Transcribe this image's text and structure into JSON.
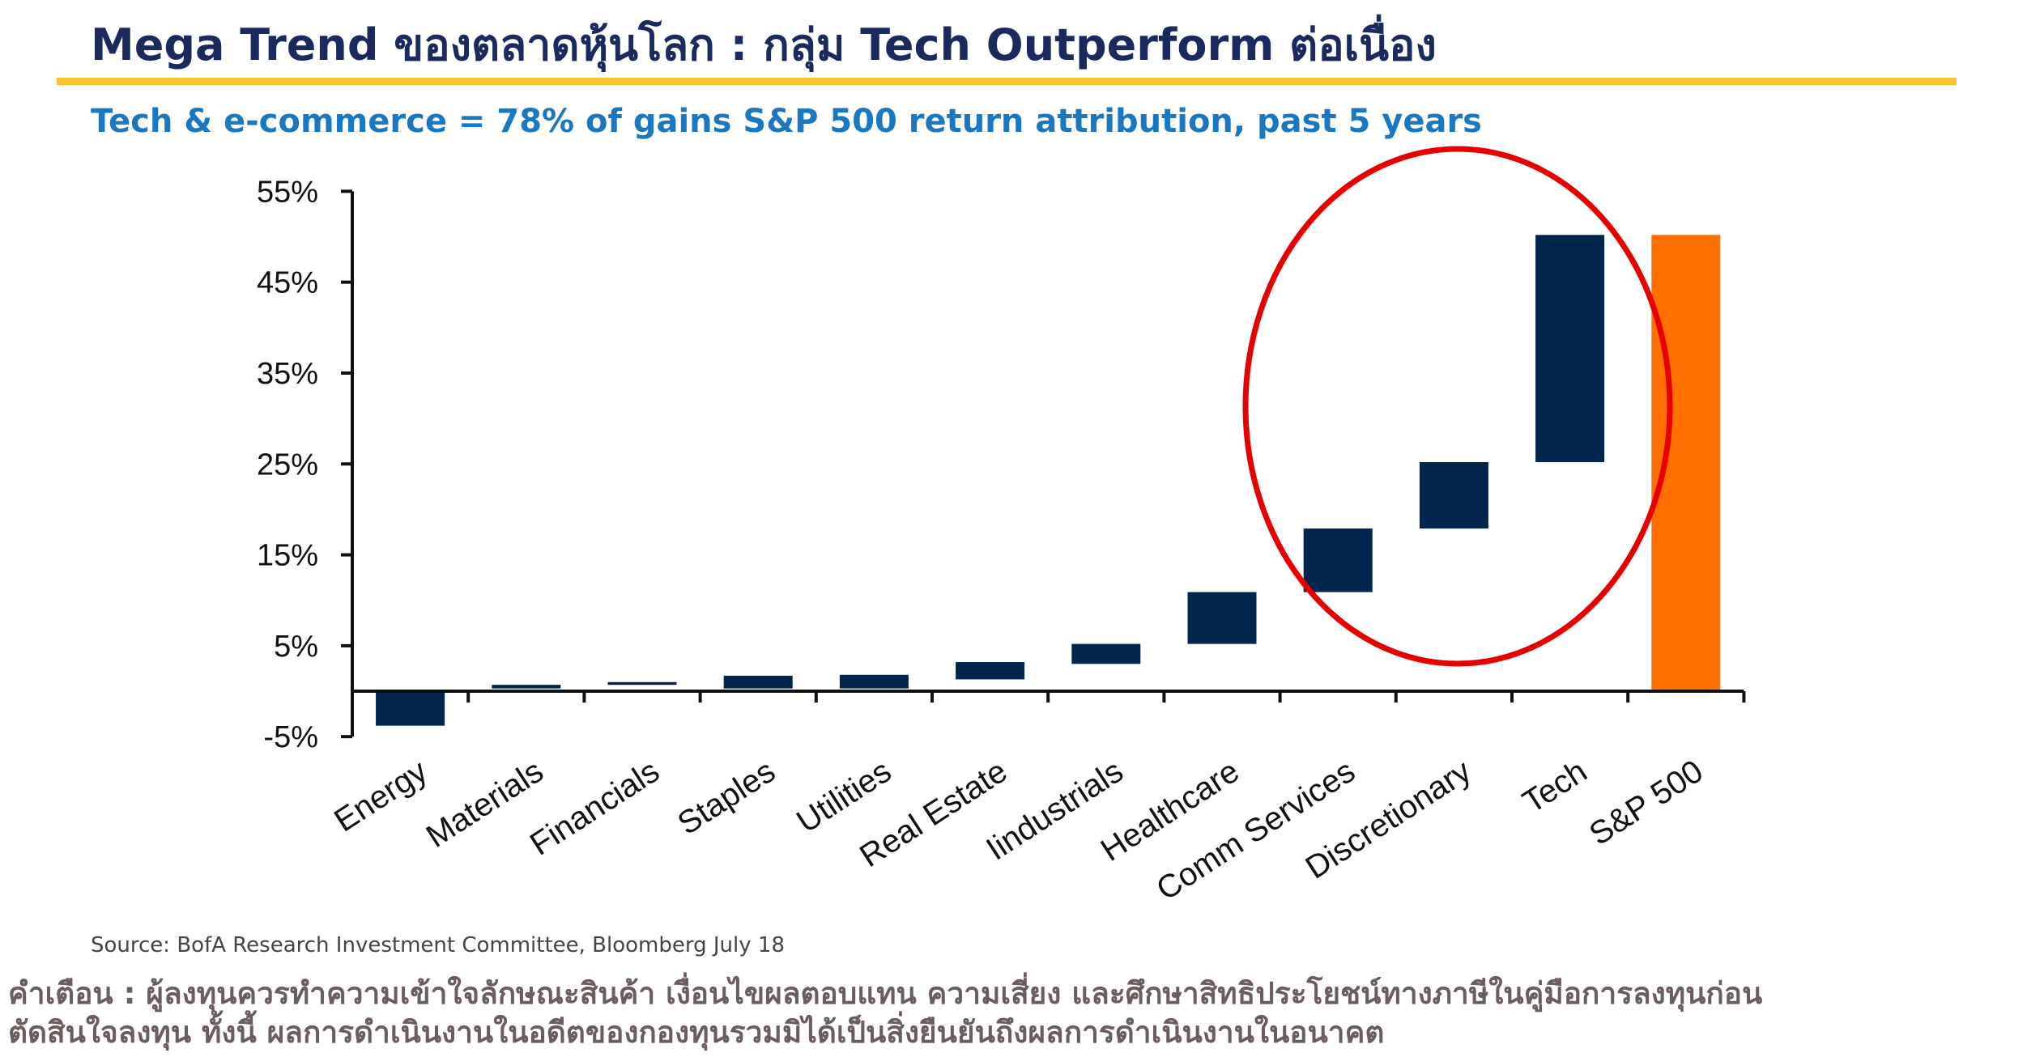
{
  "header": {
    "title": "Mega Trend ของตลาดหุ้นโลก : กลุ่ม Tech Outperform ต่อเนื่อง",
    "subtitle": "Tech & e-commerce = 78% of gains S&P 500 return attribution, past 5 years"
  },
  "chart_data": {
    "type": "bar",
    "subtype": "waterfall",
    "title": "",
    "xlabel": "",
    "ylabel": "",
    "ylim": [
      -5,
      55
    ],
    "yticks": [
      "55%",
      "45%",
      "35%",
      "25%",
      "15%",
      "5%",
      "-5%"
    ],
    "categories": [
      "Energy",
      "Materials",
      "Financials",
      "Staples",
      "Utilities",
      "Real Estate",
      "Iindustrials",
      "Healthcare",
      "Comm Services",
      "Discretionary",
      "Tech",
      "S&P 500"
    ],
    "segments": [
      {
        "category": "Energy",
        "start": 0,
        "end": -3.8
      },
      {
        "category": "Materials",
        "start": 0.3,
        "end": 0.7
      },
      {
        "category": "Financials",
        "start": 0.7,
        "end": 1.0
      },
      {
        "category": "Staples",
        "start": 0.3,
        "end": 1.7
      },
      {
        "category": "Utilities",
        "start": 0.3,
        "end": 1.8
      },
      {
        "category": "Real Estate",
        "start": 1.3,
        "end": 3.2
      },
      {
        "category": "Iindustrials",
        "start": 3.0,
        "end": 5.2
      },
      {
        "category": "Healthcare",
        "start": 5.2,
        "end": 10.9
      },
      {
        "category": "Comm Services",
        "start": 10.9,
        "end": 17.9
      },
      {
        "category": "Discretionary",
        "start": 17.9,
        "end": 25.2
      },
      {
        "category": "Tech",
        "start": 25.2,
        "end": 50.2
      },
      {
        "category": "S&P 500",
        "start": 0,
        "end": 50.2
      }
    ],
    "colors": {
      "sector": "#00264d",
      "total": "#ff7000",
      "highlight_circle": "#e60000",
      "axis": "#111111"
    },
    "grid": false,
    "legend": "none",
    "annotation": "red ellipse highlighting Comm Services, Discretionary and Tech"
  },
  "footer": {
    "source": "Source: BofA Research Investment Committee, Bloomberg July 18",
    "disclaimer_line1": "คำเตือน : ผู้ลงทุนควรทำความเข้าใจลักษณะสินค้า เงื่อนไขผลตอบแทน ความเสี่ยง และศึกษาสิทธิประโยชน์ทางภาษีในคู่มือการลงทุนก่อน",
    "disclaimer_line2": "ตัดสินใจลงทุน ทั้งนี้ ผลการดำเนินงานในอดีตของกองทุนรวมมิได้เป็นสิ่งยืนยันถึงผลการดำเนินงานในอนาคต"
  }
}
